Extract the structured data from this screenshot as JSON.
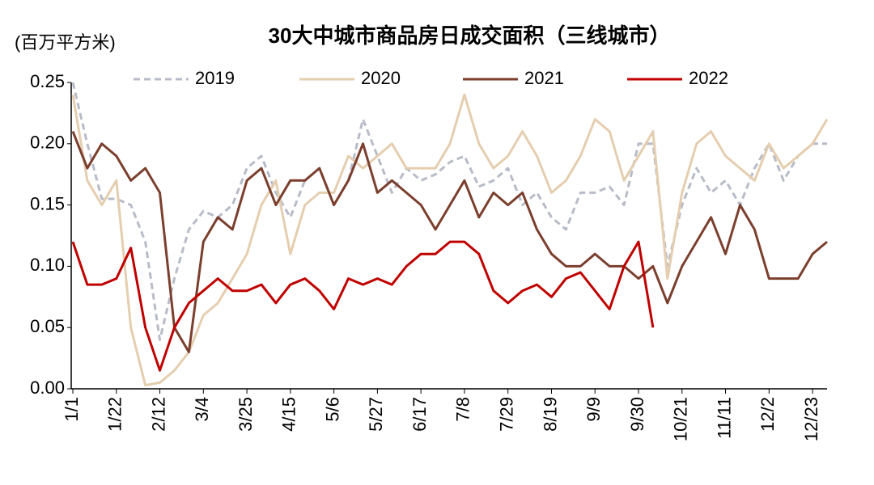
{
  "chart_data": {
    "type": "line",
    "title": "30大中城市商品房日成交面积（三线城市）",
    "y_label": "(百万平方米)",
    "categories": [
      "1/1",
      null,
      null,
      "1/22",
      null,
      null,
      "2/12",
      null,
      null,
      "3/4",
      null,
      null,
      "3/25",
      null,
      null,
      "4/15",
      null,
      null,
      "5/6",
      null,
      null,
      "5/27",
      null,
      null,
      "6/17",
      null,
      null,
      "7/8",
      null,
      null,
      "7/29",
      null,
      null,
      "8/19",
      null,
      null,
      "9/9",
      null,
      null,
      "9/30",
      null,
      null,
      "10/21",
      null,
      null,
      "11/11",
      null,
      null,
      "12/2",
      null,
      null,
      "12/23",
      null
    ],
    "ylim": [
      0,
      0.25
    ],
    "yticks": [
      {
        "value": 0,
        "label": "0.00"
      },
      0.05,
      {
        "value": 0.1,
        "label": "0.10"
      },
      0.15,
      {
        "value": 0.2,
        "label": "0.20"
      },
      0.25
    ],
    "grid": false,
    "legend": "top",
    "series": [
      {
        "name": "2019",
        "color": "#b8bcc8",
        "dashed": true,
        "values": [
          0.25,
          0.2,
          0.155,
          0.155,
          0.15,
          0.12,
          0.04,
          0.09,
          0.13,
          0.145,
          0.14,
          0.15,
          0.18,
          0.19,
          0.16,
          0.14,
          0.17,
          0.18,
          0.15,
          0.17,
          0.22,
          0.19,
          0.16,
          0.18,
          0.17,
          0.175,
          0.185,
          0.19,
          0.165,
          0.17,
          0.18,
          0.15,
          0.16,
          0.14,
          0.13,
          0.16,
          0.16,
          0.165,
          0.15,
          0.2,
          0.2,
          0.1,
          0.15,
          0.18,
          0.16,
          0.17,
          0.15,
          0.18,
          0.2,
          0.17,
          0.19,
          0.2,
          0.2
        ]
      },
      {
        "name": "2020",
        "color": "#e5ceb0",
        "dashed": false,
        "values": [
          0.24,
          0.17,
          0.15,
          0.17,
          0.05,
          0.003,
          0.005,
          0.015,
          0.03,
          0.06,
          0.07,
          0.09,
          0.11,
          0.15,
          0.17,
          0.11,
          0.15,
          0.16,
          0.16,
          0.19,
          0.18,
          0.19,
          0.2,
          0.18,
          0.18,
          0.18,
          0.2,
          0.24,
          0.2,
          0.18,
          0.19,
          0.21,
          0.19,
          0.16,
          0.17,
          0.19,
          0.22,
          0.21,
          0.17,
          0.19,
          0.21,
          0.09,
          0.16,
          0.2,
          0.21,
          0.19,
          0.18,
          0.17,
          0.2,
          0.18,
          0.19,
          0.2,
          0.22
        ]
      },
      {
        "name": "2021",
        "color": "#7b3f2e",
        "dashed": false,
        "values": [
          0.21,
          0.18,
          0.2,
          0.19,
          0.17,
          0.18,
          0.16,
          0.05,
          0.03,
          0.12,
          0.14,
          0.13,
          0.17,
          0.18,
          0.15,
          0.17,
          0.17,
          0.18,
          0.15,
          0.17,
          0.2,
          0.16,
          0.17,
          0.16,
          0.15,
          0.13,
          0.15,
          0.17,
          0.14,
          0.16,
          0.15,
          0.16,
          0.13,
          0.11,
          0.1,
          0.1,
          0.11,
          0.1,
          0.1,
          0.09,
          0.1,
          0.07,
          0.1,
          0.12,
          0.14,
          0.11,
          0.15,
          0.13,
          0.09,
          0.09,
          0.09,
          0.11,
          0.12
        ]
      },
      {
        "name": "2022",
        "color": "#c00000",
        "dashed": false,
        "values": [
          0.12,
          0.085,
          0.085,
          0.09,
          0.115,
          0.05,
          0.015,
          0.05,
          0.07,
          0.08,
          0.09,
          0.08,
          0.08,
          0.085,
          0.07,
          0.085,
          0.09,
          0.08,
          0.065,
          0.09,
          0.085,
          0.09,
          0.085,
          0.1,
          0.11,
          0.11,
          0.12,
          0.12,
          0.11,
          0.08,
          0.07,
          0.08,
          0.085,
          0.075,
          0.09,
          0.095,
          0.08,
          0.065,
          0.1,
          0.12,
          0.05,
          null,
          null,
          null,
          null,
          null,
          null,
          null,
          null,
          null,
          null,
          null,
          null
        ]
      }
    ]
  }
}
